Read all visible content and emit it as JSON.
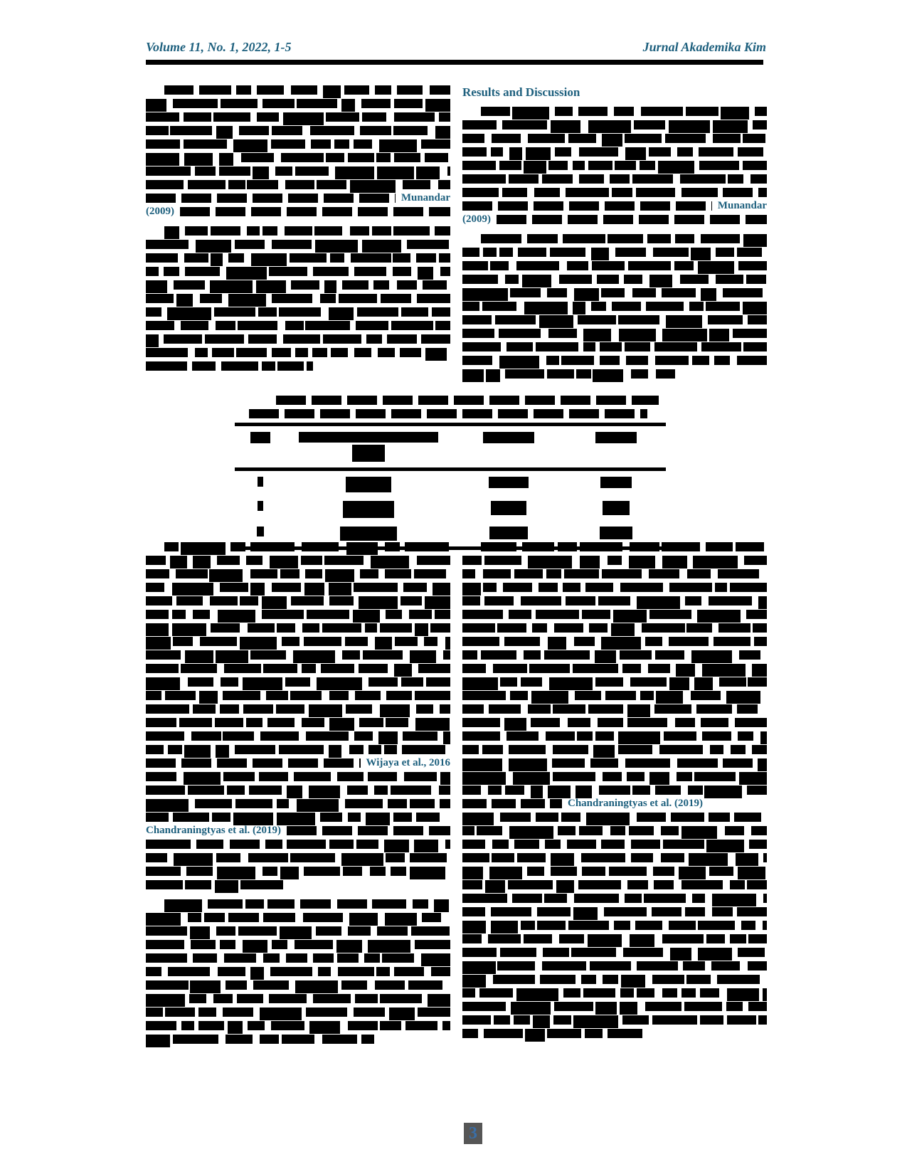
{
  "header": {
    "volume_info": "Volume 11, No. 1, 2022, 1-5",
    "journal_title": "Jurnal Akademika Kim"
  },
  "headings": {
    "results": "Results and Discussion"
  },
  "citations": {
    "munandar_left_name": "Munandar",
    "munandar_left_year": "(2009)",
    "munandar_right_name": "Munandar",
    "munandar_right_year": "(2009)",
    "wijaya": "Wijaya et al., 2016",
    "chandraningtyas_left": "Chandraningtyas  et  al.  (2019)",
    "chandraningtyas_right": "Chandraningtyas et al. (2019)"
  },
  "table": {
    "columns": 4,
    "body_rows": 3,
    "legibility": "redacted"
  },
  "footer": {
    "page_number": "3"
  },
  "colors": {
    "accent": "#1e607e",
    "blob": "#000000",
    "page_number_fg": "#3a6fa8",
    "page_number_bg": "#565656"
  }
}
